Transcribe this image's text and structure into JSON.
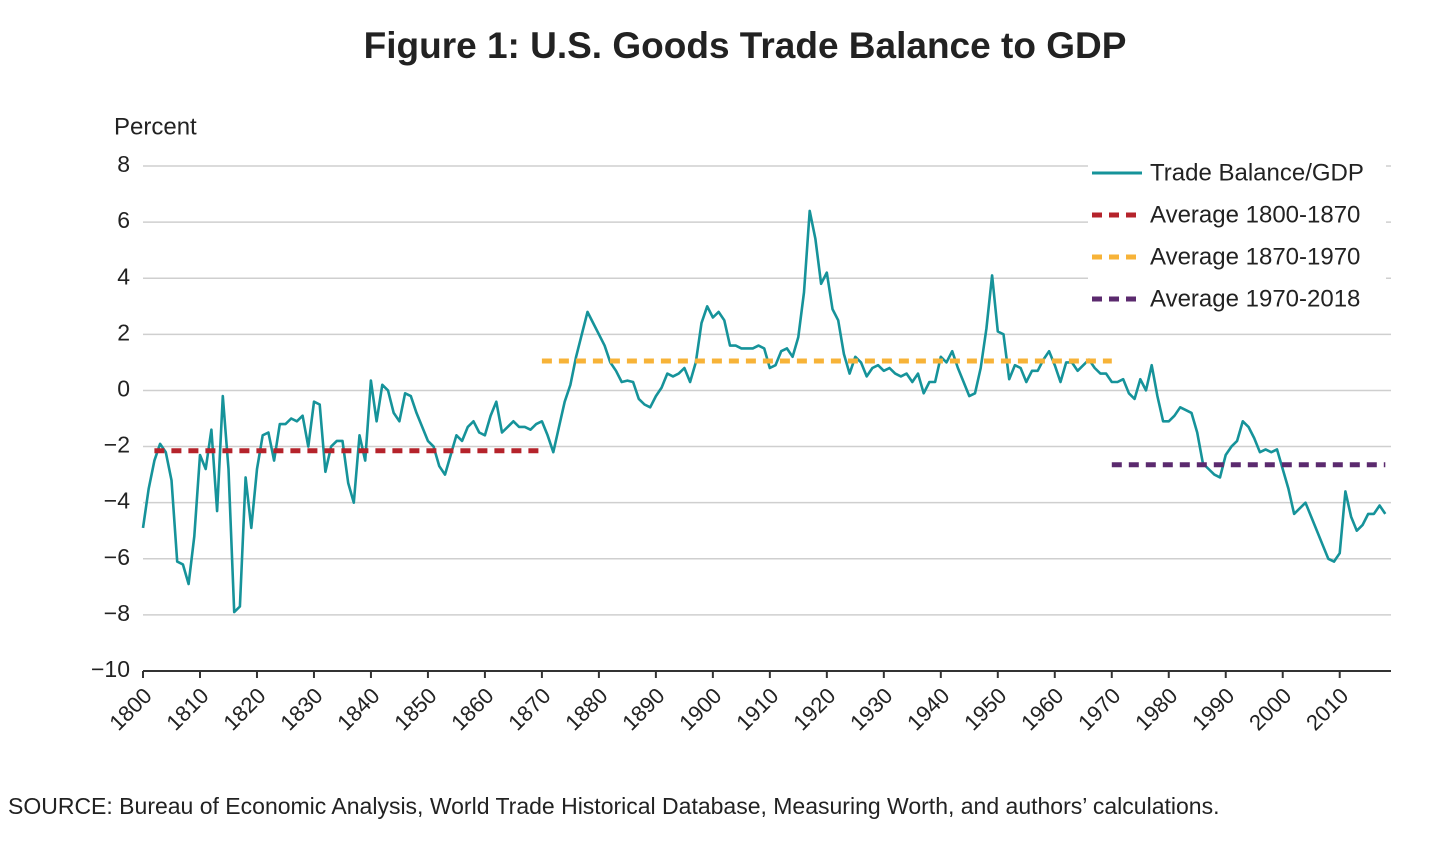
{
  "chart_data": {
    "type": "line",
    "title": "Figure 1: U.S. Goods Trade Balance to GDP",
    "y_label": "Percent",
    "source": "SOURCE: Bureau of Economic Analysis, World Trade Historical Database, Measuring Worth, and authors’ calculations.",
    "xlim": [
      1800,
      2019
    ],
    "ylim": [
      -10,
      8
    ],
    "xticks": [
      1800,
      1810,
      1820,
      1830,
      1840,
      1850,
      1860,
      1870,
      1880,
      1890,
      1900,
      1910,
      1920,
      1930,
      1940,
      1950,
      1960,
      1970,
      1980,
      1990,
      2000,
      2010
    ],
    "yticks": [
      {
        "value": -10,
        "label": "−10"
      },
      {
        "value": -8,
        "label": "−8"
      },
      {
        "value": -6,
        "label": "−6"
      },
      {
        "value": -4,
        "label": "−4"
      },
      {
        "value": -2,
        "label": "−2"
      },
      0,
      2,
      4,
      6,
      8
    ],
    "grid": true,
    "legend": "upper right",
    "series": [
      {
        "name": "Trade Balance/GDP",
        "color": "#16939a",
        "dashed": false,
        "x": [
          1800,
          1801,
          1802,
          1803,
          1804,
          1805,
          1806,
          1807,
          1808,
          1809,
          1810,
          1811,
          1812,
          1813,
          1814,
          1815,
          1816,
          1817,
          1818,
          1819,
          1820,
          1821,
          1822,
          1823,
          1824,
          1825,
          1826,
          1827,
          1828,
          1829,
          1830,
          1831,
          1832,
          1833,
          1834,
          1835,
          1836,
          1837,
          1838,
          1839,
          1840,
          1841,
          1842,
          1843,
          1844,
          1845,
          1846,
          1847,
          1848,
          1849,
          1850,
          1851,
          1852,
          1853,
          1854,
          1855,
          1856,
          1857,
          1858,
          1859,
          1860,
          1861,
          1862,
          1863,
          1864,
          1865,
          1866,
          1867,
          1868,
          1869,
          1870,
          1871,
          1872,
          1873,
          1874,
          1875,
          1876,
          1877,
          1878,
          1879,
          1880,
          1881,
          1882,
          1883,
          1884,
          1885,
          1886,
          1887,
          1888,
          1889,
          1890,
          1891,
          1892,
          1893,
          1894,
          1895,
          1896,
          1897,
          1898,
          1899,
          1900,
          1901,
          1902,
          1903,
          1904,
          1905,
          1906,
          1907,
          1908,
          1909,
          1910,
          1911,
          1912,
          1913,
          1914,
          1915,
          1916,
          1917,
          1918,
          1919,
          1920,
          1921,
          1922,
          1923,
          1924,
          1925,
          1926,
          1927,
          1928,
          1929,
          1930,
          1931,
          1932,
          1933,
          1934,
          1935,
          1936,
          1937,
          1938,
          1939,
          1940,
          1941,
          1942,
          1943,
          1944,
          1945,
          1946,
          1947,
          1948,
          1949,
          1950,
          1951,
          1952,
          1953,
          1954,
          1955,
          1956,
          1957,
          1958,
          1959,
          1960,
          1961,
          1962,
          1963,
          1964,
          1965,
          1966,
          1967,
          1968,
          1969,
          1970,
          1971,
          1972,
          1973,
          1974,
          1975,
          1976,
          1977,
          1978,
          1979,
          1980,
          1981,
          1982,
          1983,
          1984,
          1985,
          1986,
          1987,
          1988,
          1989,
          1990,
          1991,
          1992,
          1993,
          1994,
          1995,
          1996,
          1997,
          1998,
          1999,
          2000,
          2001,
          2002,
          2003,
          2004,
          2005,
          2006,
          2007,
          2008,
          2009,
          2010,
          2011,
          2012,
          2013,
          2014,
          2015,
          2016,
          2017,
          2018
        ],
        "values": [
          -4.9,
          -3.5,
          -2.5,
          -1.9,
          -2.2,
          -3.2,
          -6.1,
          -6.2,
          -6.9,
          -5.2,
          -2.3,
          -2.8,
          -1.4,
          -4.3,
          -0.2,
          -2.8,
          -7.9,
          -7.7,
          -3.1,
          -4.9,
          -2.8,
          -1.6,
          -1.5,
          -2.5,
          -1.2,
          -1.2,
          -1.0,
          -1.1,
          -0.9,
          -2.0,
          -0.4,
          -0.5,
          -2.9,
          -2.0,
          -1.8,
          -1.8,
          -3.3,
          -4.0,
          -1.6,
          -2.5,
          0.35,
          -1.1,
          0.2,
          0.0,
          -0.8,
          -1.1,
          -0.1,
          -0.2,
          -0.8,
          -1.3,
          -1.8,
          -2.0,
          -2.7,
          -3.0,
          -2.3,
          -1.6,
          -1.8,
          -1.3,
          -1.1,
          -1.5,
          -1.6,
          -0.9,
          -0.4,
          -1.5,
          -1.3,
          -1.1,
          -1.3,
          -1.3,
          -1.4,
          -1.2,
          -1.1,
          -1.6,
          -2.2,
          -1.3,
          -0.4,
          0.2,
          1.2,
          2.0,
          2.8,
          2.4,
          2.0,
          1.6,
          1.0,
          0.7,
          0.3,
          0.35,
          0.3,
          -0.3,
          -0.5,
          -0.6,
          -0.2,
          0.1,
          0.6,
          0.5,
          0.6,
          0.8,
          0.3,
          1.0,
          2.4,
          3.0,
          2.6,
          2.8,
          2.5,
          1.6,
          1.6,
          1.5,
          1.5,
          1.5,
          1.6,
          1.5,
          0.8,
          0.9,
          1.4,
          1.5,
          1.2,
          1.9,
          3.5,
          6.4,
          5.4,
          3.8,
          4.2,
          2.9,
          2.5,
          1.3,
          0.6,
          1.2,
          1.0,
          0.5,
          0.8,
          0.9,
          0.7,
          0.8,
          0.6,
          0.5,
          0.6,
          0.3,
          0.6,
          -0.1,
          0.3,
          0.3,
          1.2,
          1.0,
          1.4,
          0.8,
          0.3,
          -0.2,
          -0.1,
          0.8,
          2.2,
          4.1,
          2.1,
          2.0,
          0.4,
          0.9,
          0.8,
          0.3,
          0.7,
          0.7,
          1.1,
          1.4,
          0.9,
          0.3,
          1.0,
          1.0,
          0.7,
          0.9,
          1.1,
          0.8,
          0.6,
          0.6,
          0.3,
          0.3,
          0.4,
          -0.1,
          -0.3,
          0.4,
          0.0,
          0.9,
          -0.2,
          -1.1,
          -1.1,
          -0.9,
          -0.6,
          -0.7,
          -0.8,
          -1.5,
          -2.6,
          -2.8,
          -3.0,
          -3.1,
          -2.3,
          -2.0,
          -1.8,
          -1.1,
          -1.3,
          -1.7,
          -2.2,
          -2.1,
          -2.2,
          -2.1,
          -2.8,
          -3.5,
          -4.4,
          -4.2,
          -4.0,
          -4.5,
          -5.0,
          -5.5,
          -6.0,
          -6.1,
          -5.8,
          -3.6,
          -4.5,
          -5.0,
          -4.8,
          -4.4,
          -4.4,
          -4.1,
          -4.4
        ]
      },
      {
        "name": "Average 1800-1870",
        "color": "#b5232b",
        "dashed": true,
        "x": [
          1802,
          1870
        ],
        "values": [
          -2.15,
          -2.15
        ]
      },
      {
        "name": "Average 1870-1970",
        "color": "#f7b338",
        "dashed": true,
        "x": [
          1870,
          1970
        ],
        "values": [
          1.05,
          1.05
        ]
      },
      {
        "name": "Average 1970-2018",
        "color": "#5b2a6e",
        "dashed": true,
        "x": [
          1970,
          2018
        ],
        "values": [
          -2.65,
          -2.65
        ]
      }
    ]
  }
}
